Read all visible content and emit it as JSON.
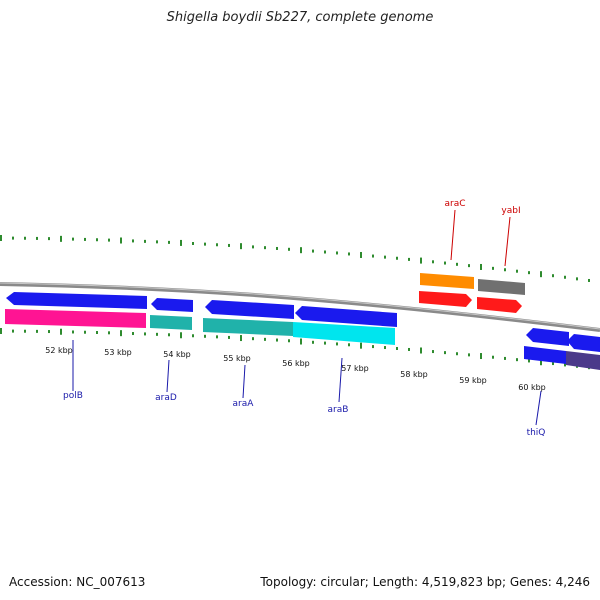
{
  "title": "Shigella boydii Sb227, complete genome",
  "footer": {
    "accession": "Accession: NC_007613",
    "summary": "Topology: circular; Length: 4,519,823 bp; Genes: 4,246"
  },
  "scale": {
    "unit_suffix": " kbp",
    "ticks": [
      "52 kbp",
      "53 kbp",
      "54 kbp",
      "55 kbp",
      "56 kbp",
      "57 kbp",
      "58 kbp",
      "59 kbp",
      "60 kbp"
    ]
  },
  "colors": {
    "backbone": "#8a8a8a",
    "tick": "#2e8b2e",
    "label_upper": "#cc0000",
    "label_lower": "#1a1aaa"
  },
  "genes": {
    "upper": [
      {
        "name": "araC",
        "color": "#ff8c00",
        "strand": "forward"
      },
      {
        "name": "yabI",
        "color": "#707070",
        "strand": "forward"
      }
    ],
    "lower": [
      {
        "name": "polB",
        "color": "#ff1493",
        "strand": "reverse"
      },
      {
        "name": "araD",
        "color": "#20b2aa",
        "strand": "reverse"
      },
      {
        "name": "araA",
        "color": "#20b2aa",
        "strand": "reverse"
      },
      {
        "name": "araB",
        "color": "#00e5ee",
        "strand": "reverse"
      },
      {
        "name": "thiQ",
        "color": "#4b3a8a",
        "strand": "reverse"
      }
    ]
  }
}
